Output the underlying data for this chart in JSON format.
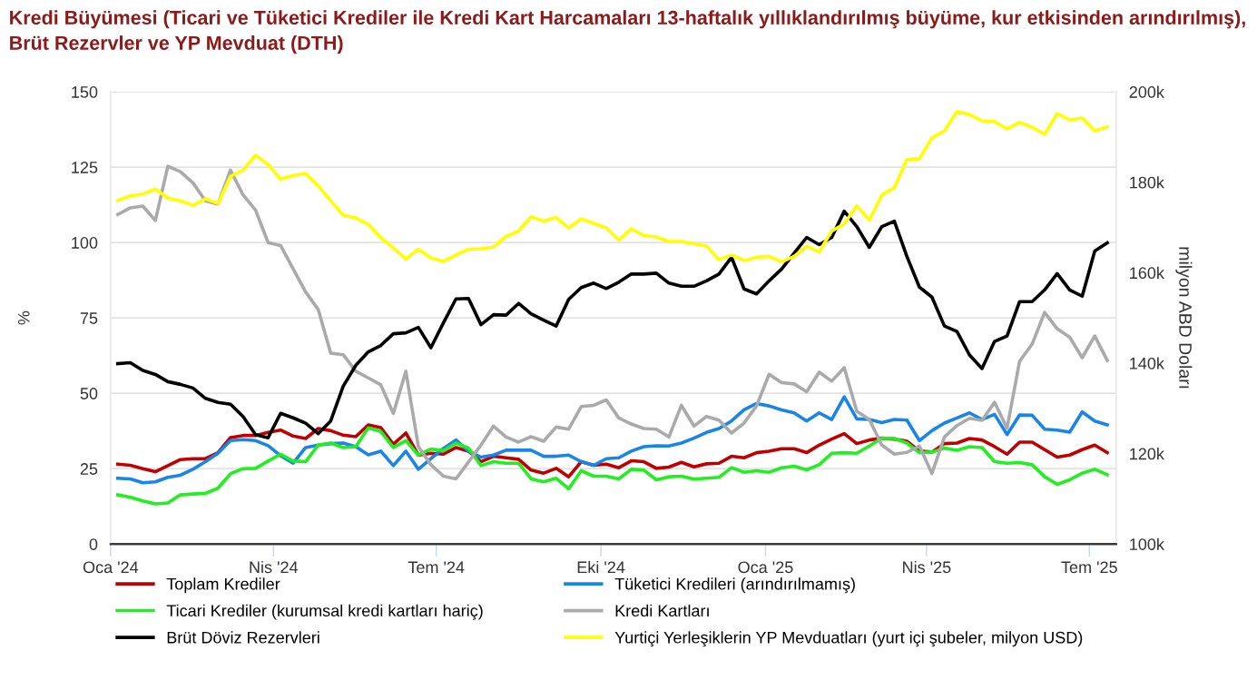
{
  "chart_data": {
    "type": "line",
    "title": "Kredi Büyümesi (Ticari ve Tüketici Krediler ile Kredi Kart Harcamaları 13-haftalık yıllıklandırılmış büyüme, kur etkisinden arındırılmış), Brüt Rezervler ve YP Mevduat (DTH)",
    "ylabel": "%",
    "y2label": "milyon ABD Doları",
    "x": [
      "2024-01-05",
      "2024-01-12",
      "2024-01-19",
      "2024-01-26",
      "2024-02-02",
      "2024-02-09",
      "2024-02-16",
      "2024-02-23",
      "2024-03-01",
      "2024-03-08",
      "2024-03-15",
      "2024-03-22",
      "2024-03-29",
      "2024-04-05",
      "2024-04-12",
      "2024-04-19",
      "2024-04-26",
      "2024-05-03",
      "2024-05-10",
      "2024-05-17",
      "2024-05-24",
      "2024-05-31",
      "2024-06-07",
      "2024-06-14",
      "2024-06-21",
      "2024-06-28",
      "2024-07-05",
      "2024-07-12",
      "2024-07-19",
      "2024-07-26",
      "2024-08-02",
      "2024-08-09",
      "2024-08-16",
      "2024-08-23",
      "2024-08-30",
      "2024-09-06",
      "2024-09-13",
      "2024-09-20",
      "2024-09-27",
      "2024-10-04",
      "2024-10-11",
      "2024-10-18",
      "2024-10-25",
      "2024-11-01",
      "2024-11-08",
      "2024-11-15",
      "2024-11-22",
      "2024-11-29",
      "2024-12-06",
      "2024-12-13",
      "2024-12-20",
      "2024-12-27",
      "2025-01-03",
      "2025-01-10",
      "2025-01-17",
      "2025-01-24",
      "2025-01-31",
      "2025-02-07",
      "2025-02-14",
      "2025-02-21",
      "2025-02-28",
      "2025-03-07",
      "2025-03-14",
      "2025-03-21",
      "2025-03-28",
      "2025-04-04",
      "2025-04-11",
      "2025-04-18",
      "2025-04-25",
      "2025-05-02",
      "2025-05-09",
      "2025-05-16",
      "2025-05-23",
      "2025-05-30",
      "2025-06-06",
      "2025-06-13",
      "2025-06-20",
      "2025-06-27",
      "2025-07-04",
      "2025-07-11"
    ],
    "xlim": [
      "2024-01-01",
      "2025-07-16"
    ],
    "xticks": [
      {
        "value": "2024-01-01",
        "label": "Oca '24"
      },
      {
        "value": "2024-04-01",
        "label": "Nis '24"
      },
      {
        "value": "2024-07-01",
        "label": "Tem '24"
      },
      {
        "value": "2024-10-01",
        "label": "Eki '24"
      },
      {
        "value": "2025-01-01",
        "label": "Oca '25"
      },
      {
        "value": "2025-04-01",
        "label": "Nis '25"
      },
      {
        "value": "2025-07-01",
        "label": "Tem '25"
      }
    ],
    "ylim": [
      0,
      150
    ],
    "yticks": [
      0,
      25,
      50,
      75,
      100,
      125,
      150
    ],
    "y2lim": [
      100,
      200
    ],
    "y2ticks": [
      {
        "value": 100,
        "label": "100k"
      },
      {
        "value": 120,
        "label": "120k"
      },
      {
        "value": 140,
        "label": "140k"
      },
      {
        "value": 160,
        "label": "160k"
      },
      {
        "value": 180,
        "label": "180k"
      },
      {
        "value": 200,
        "label": "200k"
      }
    ],
    "grid": "y",
    "legend": "bottom",
    "marker": "none",
    "line_style": "solid",
    "series": [
      {
        "name": "Toplam Krediler",
        "color": "#c00000",
        "values": [
          26.5,
          26.1,
          25.0,
          24.0,
          26.0,
          28.0,
          28.3,
          28.3,
          30.3,
          35.3,
          36.0,
          36.0,
          37.0,
          37.8,
          35.8,
          35.0,
          38.3,
          37.6,
          36.1,
          35.6,
          39.5,
          38.6,
          33.1,
          36.8,
          29.5,
          30.1,
          29.8,
          32.0,
          30.8,
          27.3,
          29.1,
          28.6,
          28.1,
          24.5,
          23.5,
          25.1,
          22.3,
          27.3,
          26.1,
          26.5,
          25.3,
          27.6,
          27.3,
          25.1,
          25.5,
          27.1,
          25.6,
          26.6,
          26.8,
          29.1,
          28.6,
          30.3,
          30.8,
          31.6,
          31.6,
          30.3,
          32.8,
          34.8,
          36.6,
          33.3,
          34.5,
          35.1,
          34.8,
          34.1,
          30.8,
          30.5,
          33.3,
          33.5,
          35.0,
          34.5,
          32.3,
          29.8,
          33.8,
          33.8,
          31.3,
          28.8,
          29.5,
          31.3,
          32.8,
          30.3
        ]
      },
      {
        "name": "Tüketici Kredileri (arındırılmamış)",
        "color": "#1a85e8",
        "values": [
          21.8,
          21.6,
          20.3,
          20.6,
          22.1,
          22.8,
          24.8,
          27.3,
          30.1,
          34.3,
          34.6,
          34.3,
          32.6,
          29.3,
          26.8,
          32.0,
          32.8,
          33.3,
          33.5,
          32.3,
          29.6,
          30.8,
          26.0,
          30.8,
          24.8,
          28.3,
          31.7,
          34.5,
          30.8,
          28.8,
          29.5,
          31.1,
          31.1,
          31.1,
          29.1,
          29.1,
          29.5,
          27.3,
          26.1,
          28.3,
          28.6,
          30.8,
          32.3,
          32.6,
          32.5,
          33.5,
          35.1,
          37.0,
          38.3,
          40.8,
          44.5,
          46.6,
          45.8,
          44.5,
          43.5,
          40.8,
          43.5,
          41.3,
          48.8,
          41.5,
          41.3,
          40.3,
          41.3,
          41.1,
          34.3,
          37.6,
          40.1,
          41.8,
          43.5,
          41.3,
          43.0,
          36.3,
          42.8,
          42.7,
          38.1,
          37.8,
          37.1,
          43.8,
          40.8,
          39.5
        ]
      },
      {
        "name": "Ticari Krediler (kurumsal kredi kartları hariç)",
        "color": "#22ee22",
        "values": [
          16.3,
          15.5,
          14.3,
          13.3,
          13.6,
          16.3,
          16.6,
          16.8,
          18.5,
          23.3,
          25.0,
          25.1,
          27.5,
          29.8,
          27.5,
          27.3,
          32.8,
          33.5,
          32.0,
          32.3,
          38.5,
          37.3,
          32.0,
          34.3,
          29.5,
          31.5,
          31.0,
          33.5,
          31.8,
          26.0,
          27.3,
          26.8,
          26.8,
          21.6,
          20.6,
          21.8,
          18.3,
          24.3,
          22.5,
          22.5,
          21.6,
          24.8,
          24.5,
          21.3,
          22.3,
          22.5,
          21.5,
          21.8,
          22.1,
          25.3,
          23.8,
          24.3,
          23.8,
          25.3,
          25.8,
          24.6,
          26.3,
          30.1,
          30.3,
          30.1,
          32.5,
          35.1,
          35.0,
          33.5,
          30.3,
          30.5,
          31.8,
          31.1,
          32.3,
          32.0,
          27.3,
          26.8,
          27.0,
          26.3,
          22.3,
          19.8,
          21.3,
          23.5,
          24.8,
          23.0
        ]
      },
      {
        "name": "Kredi Kartları",
        "color": "#aaaaaa",
        "values": [
          109.3,
          111.5,
          112.1,
          107.3,
          125.3,
          123.5,
          119.8,
          113.8,
          112.8,
          124.0,
          115.8,
          110.8,
          100.0,
          99.0,
          91.3,
          83.6,
          77.8,
          63.3,
          62.8,
          57.3,
          55.1,
          52.8,
          43.3,
          57.3,
          32.3,
          26.3,
          22.5,
          21.6,
          27.2,
          32.8,
          39.1,
          35.5,
          33.8,
          35.6,
          34.1,
          38.8,
          38.1,
          45.6,
          46.0,
          47.8,
          41.8,
          39.8,
          38.3,
          38.1,
          35.5,
          46.0,
          39.1,
          42.3,
          41.1,
          36.8,
          40.1,
          45.8,
          56.3,
          53.5,
          53.1,
          50.5,
          57.0,
          54.0,
          58.5,
          44.0,
          41.3,
          32.8,
          29.8,
          30.4,
          32.5,
          23.4,
          35.5,
          39.3,
          41.7,
          41.0,
          47.0,
          38.4,
          60.6,
          66.3,
          76.8,
          71.4,
          68.6,
          61.8,
          69.0,
          60.9
        ]
      },
      {
        "name": "Brüt Döviz Rezervleri",
        "color": "#000000",
        "axis": "y2",
        "values": [
          139.9,
          140.1,
          138.4,
          137.5,
          135.9,
          135.3,
          134.5,
          132.2,
          131.3,
          130.9,
          128.2,
          124.2,
          123.5,
          128.9,
          127.9,
          126.7,
          124.4,
          127.2,
          134.9,
          139.5,
          142.5,
          143.9,
          146.5,
          146.7,
          147.9,
          143.4,
          148.9,
          154.2,
          154.3,
          148.5,
          150.7,
          150.6,
          153.2,
          150.9,
          149.5,
          148.2,
          154.1,
          156.7,
          157.7,
          156.5,
          157.9,
          159.7,
          159.7,
          159.9,
          157.7,
          157.0,
          157.0,
          158.2,
          159.7,
          163.4,
          156.4,
          155.3,
          158.2,
          160.8,
          164.3,
          167.8,
          166.2,
          167.8,
          173.6,
          170.2,
          165.6,
          170.2,
          171.4,
          163.6,
          156.8,
          154.6,
          148.2,
          147.0,
          141.8,
          138.8,
          144.8,
          146.0,
          153.6,
          153.6,
          156.2,
          159.8,
          156.2,
          154.8,
          164.8,
          166.6
        ]
      },
      {
        "name": "Yurtiçi Yerleşiklerin YP Mevduatları (yurt içi şubeler, milyon USD)",
        "color": "#ffff00",
        "axis": "y2",
        "values": [
          176.0,
          177.0,
          177.4,
          178.5,
          176.5,
          175.9,
          174.9,
          176.3,
          175.3,
          181.3,
          182.7,
          186.0,
          183.9,
          180.7,
          181.5,
          181.9,
          179.2,
          175.9,
          172.7,
          172.1,
          170.7,
          167.7,
          165.5,
          163.0,
          165.2,
          163.3,
          162.5,
          163.9,
          165.2,
          165.3,
          165.7,
          168.0,
          169.2,
          172.4,
          171.4,
          172.2,
          169.9,
          171.9,
          170.9,
          169.9,
          167.2,
          169.7,
          168.2,
          167.9,
          166.9,
          166.9,
          166.4,
          165.9,
          162.9,
          163.9,
          162.7,
          163.4,
          163.6,
          162.4,
          163.6,
          165.8,
          164.6,
          169.2,
          170.8,
          174.8,
          171.6,
          177.2,
          178.8,
          185.0,
          185.2,
          189.8,
          191.4,
          195.6,
          195.0,
          193.6,
          193.4,
          191.8,
          193.2,
          192.2,
          190.6,
          195.2,
          193.8,
          194.2,
          191.4,
          192.2
        ]
      }
    ]
  }
}
